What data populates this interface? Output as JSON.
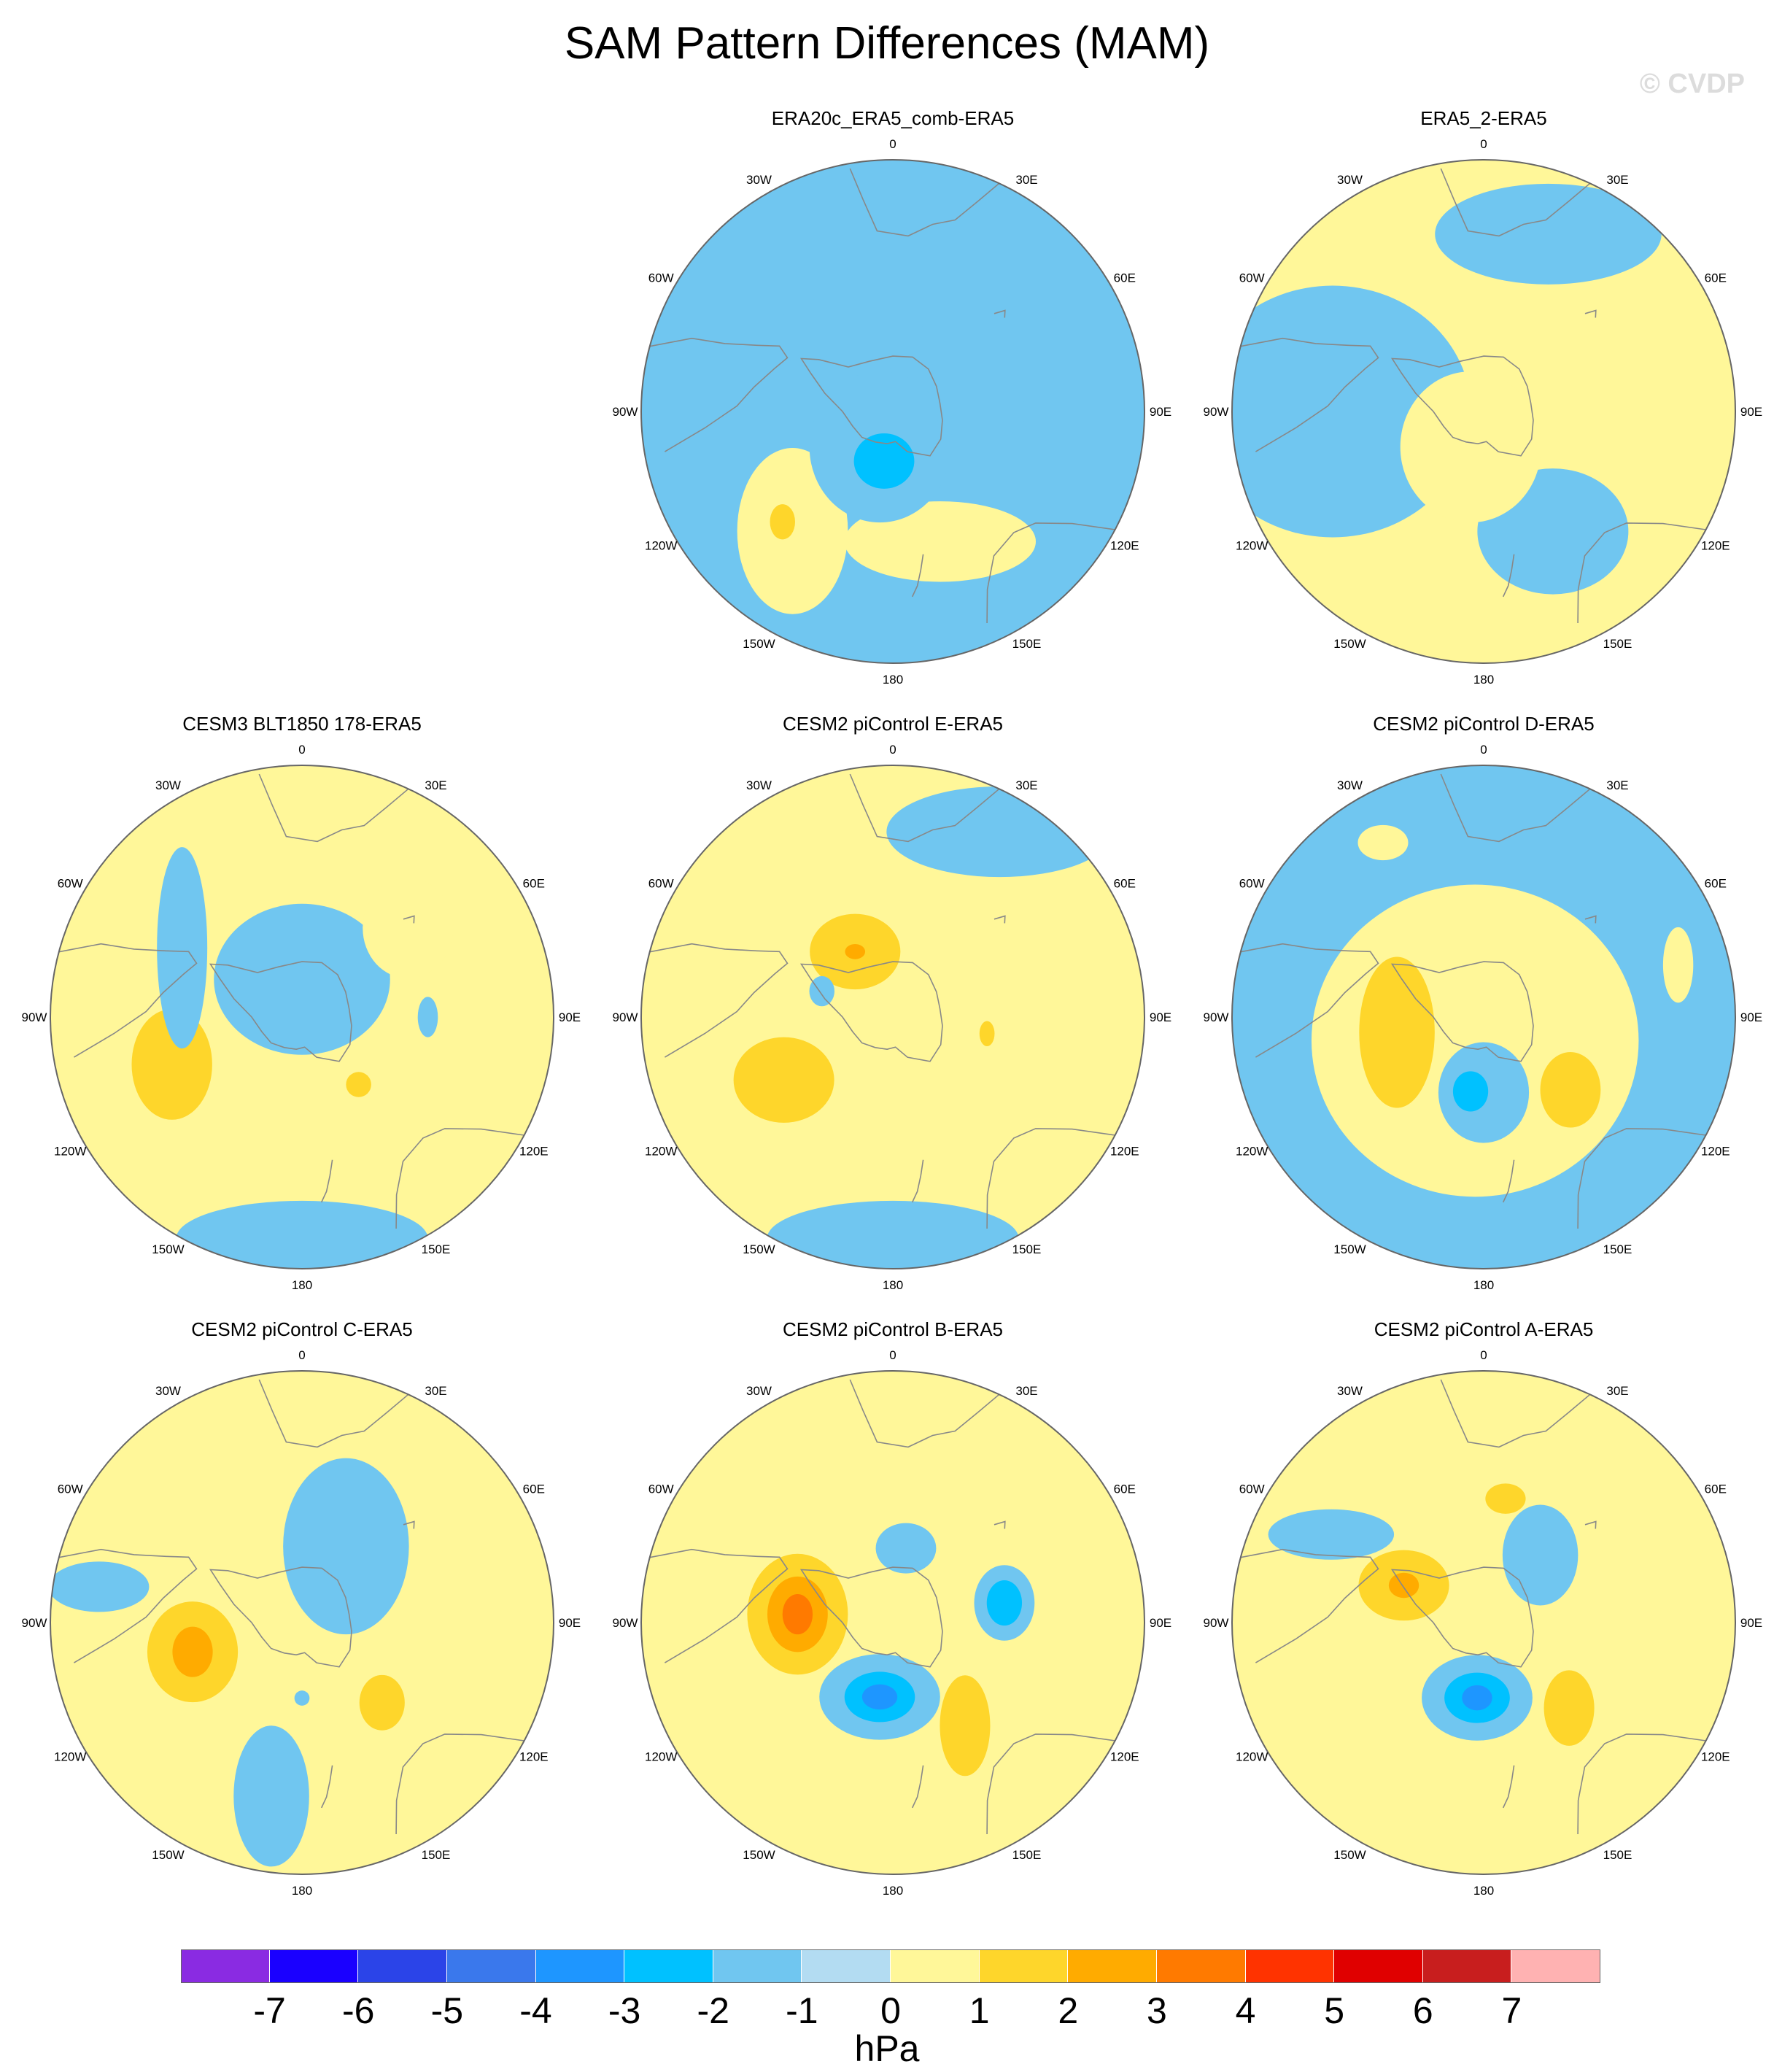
{
  "title": "SAM Pattern Differences (MAM)",
  "watermark": "© CVDP",
  "units": "hPa",
  "colors": {
    "land": "#888888",
    "background_field": "#b3dcf2",
    "frame": "#666666"
  },
  "longitude_labels": [
    "0",
    "30E",
    "60E",
    "90E",
    "120E",
    "150E",
    "180",
    "150W",
    "120W",
    "90W",
    "60W",
    "30W"
  ],
  "colorbar": {
    "colors": [
      "#8a2be2",
      "#1a00ff",
      "#2b44e8",
      "#3a78ec",
      "#1e96ff",
      "#00c1ff",
      "#70c6f0",
      "#b3dcf2",
      "#fff799",
      "#fed62b",
      "#ffab00",
      "#ff7a00",
      "#ff3300",
      "#e00000",
      "#c81e1e",
      "#ffb2b2"
    ],
    "tick_labels": [
      "-7",
      "-6",
      "-5",
      "-4",
      "-3",
      "-2",
      "-1",
      "0",
      "1",
      "2",
      "3",
      "4",
      "5",
      "6",
      "7"
    ]
  },
  "panels": [
    {
      "id": "era20c",
      "title": "ERA20c_ERA5_comb-ERA5",
      "base": "blue",
      "blobs": [
        {
          "lon": 220,
          "r": 0.62,
          "rx": 0.22,
          "ry": 0.33,
          "level": 1
        },
        {
          "lon": 225,
          "r": 0.62,
          "rx": 0.05,
          "ry": 0.07,
          "level": 2
        },
        {
          "lon": 160,
          "r": 0.55,
          "rx": 0.38,
          "ry": 0.16,
          "level": 1
        },
        {
          "lon": 200,
          "r": 0.15,
          "rx": 0.28,
          "ry": 0.3,
          "level": -1
        },
        {
          "lon": 190,
          "r": 0.2,
          "rx": 0.12,
          "ry": 0.11,
          "level": -2
        },
        {
          "lon": 330,
          "r": 0.35,
          "rx": 0.3,
          "ry": 0.16,
          "level": -1
        },
        {
          "lon": 90,
          "r": 0.35,
          "rx": 0.18,
          "ry": 0.12,
          "level": -1
        }
      ]
    },
    {
      "id": "era5_2",
      "title": "ERA5_2-ERA5",
      "base": "yellow",
      "blobs": [
        {
          "lon": 270,
          "r": 0.6,
          "rx": 0.55,
          "ry": 0.5,
          "level": -1
        },
        {
          "lon": 20,
          "r": 0.75,
          "rx": 0.45,
          "ry": 0.2,
          "level": -1
        },
        {
          "lon": 150,
          "r": 0.55,
          "rx": 0.3,
          "ry": 0.25,
          "level": -1
        },
        {
          "lon": 200,
          "r": 0.15,
          "rx": 0.28,
          "ry": 0.3,
          "level": 1
        }
      ]
    },
    {
      "id": "cesm3",
      "title": "CESM3 BLT1850 178-ERA5",
      "base": "yellow",
      "blobs": [
        {
          "lon": 250,
          "r": 0.55,
          "rx": 0.16,
          "ry": 0.22,
          "level": 2
        },
        {
          "lon": 140,
          "r": 0.35,
          "rx": 0.05,
          "ry": 0.05,
          "level": 2
        },
        {
          "lon": 90,
          "r": 0.5,
          "rx": 0.04,
          "ry": 0.08,
          "level": -1
        },
        {
          "lon": 0,
          "r": 0.15,
          "rx": 0.35,
          "ry": 0.3,
          "level": -1
        },
        {
          "lon": 300,
          "r": 0.55,
          "rx": 0.1,
          "ry": 0.4,
          "level": -1
        },
        {
          "lon": 180,
          "r": 0.88,
          "rx": 0.5,
          "ry": 0.15,
          "level": -1
        },
        {
          "lon": 50,
          "r": 0.55,
          "rx": 0.18,
          "ry": 0.2,
          "level": 1
        }
      ]
    },
    {
      "id": "cesm2e",
      "title": "CESM2 piControl E-ERA5",
      "base": "yellow",
      "blobs": [
        {
          "lon": 330,
          "r": 0.3,
          "rx": 0.18,
          "ry": 0.15,
          "level": 2
        },
        {
          "lon": 330,
          "r": 0.3,
          "rx": 0.04,
          "ry": 0.03,
          "level": 3
        },
        {
          "lon": 240,
          "r": 0.5,
          "rx": 0.2,
          "ry": 0.17,
          "level": 2
        },
        {
          "lon": 290,
          "r": 0.3,
          "rx": 0.05,
          "ry": 0.06,
          "level": -1
        },
        {
          "lon": 180,
          "r": 0.88,
          "rx": 0.5,
          "ry": 0.15,
          "level": -1
        },
        {
          "lon": 30,
          "r": 0.85,
          "rx": 0.45,
          "ry": 0.18,
          "level": -1
        },
        {
          "lon": 100,
          "r": 0.38,
          "rx": 0.03,
          "ry": 0.05,
          "level": 2
        }
      ]
    },
    {
      "id": "cesm2d",
      "title": "CESM2 piControl D-ERA5",
      "base": "blue",
      "blobs": [
        {
          "lon": 200,
          "r": 0.1,
          "rx": 0.65,
          "ry": 0.62,
          "level": 1
        },
        {
          "lon": 260,
          "r": 0.35,
          "rx": 0.15,
          "ry": 0.3,
          "level": 2
        },
        {
          "lon": 130,
          "r": 0.45,
          "rx": 0.12,
          "ry": 0.15,
          "level": 2
        },
        {
          "lon": 180,
          "r": 0.3,
          "rx": 0.18,
          "ry": 0.2,
          "level": -1
        },
        {
          "lon": 190,
          "r": 0.3,
          "rx": 0.07,
          "ry": 0.08,
          "level": -2
        },
        {
          "lon": 330,
          "r": 0.8,
          "rx": 0.1,
          "ry": 0.07,
          "level": 1
        },
        {
          "lon": 75,
          "r": 0.8,
          "rx": 0.06,
          "ry": 0.15,
          "level": 1
        }
      ]
    },
    {
      "id": "cesm2c",
      "title": "CESM2 piControl C-ERA5",
      "base": "yellow",
      "blobs": [
        {
          "lon": 255,
          "r": 0.45,
          "rx": 0.18,
          "ry": 0.2,
          "level": 2
        },
        {
          "lon": 255,
          "r": 0.45,
          "rx": 0.08,
          "ry": 0.1,
          "level": 3
        },
        {
          "lon": 135,
          "r": 0.45,
          "rx": 0.09,
          "ry": 0.11,
          "level": 2
        },
        {
          "lon": 180,
          "r": 0.3,
          "rx": 0.03,
          "ry": 0.03,
          "level": -1
        },
        {
          "lon": 30,
          "r": 0.35,
          "rx": 0.25,
          "ry": 0.35,
          "level": -1
        },
        {
          "lon": 190,
          "r": 0.7,
          "rx": 0.15,
          "ry": 0.28,
          "level": -1
        },
        {
          "lon": 280,
          "r": 0.82,
          "rx": 0.2,
          "ry": 0.1,
          "level": -1
        }
      ]
    },
    {
      "id": "cesm2b",
      "title": "CESM2 piControl B-ERA5",
      "base": "yellow",
      "blobs": [
        {
          "lon": 275,
          "r": 0.38,
          "rx": 0.2,
          "ry": 0.24,
          "level": 2
        },
        {
          "lon": 275,
          "r": 0.38,
          "rx": 0.12,
          "ry": 0.15,
          "level": 3
        },
        {
          "lon": 275,
          "r": 0.38,
          "rx": 0.06,
          "ry": 0.08,
          "level": 4
        },
        {
          "lon": 190,
          "r": 0.3,
          "rx": 0.24,
          "ry": 0.17,
          "level": -1
        },
        {
          "lon": 190,
          "r": 0.3,
          "rx": 0.14,
          "ry": 0.1,
          "level": -2
        },
        {
          "lon": 190,
          "r": 0.3,
          "rx": 0.07,
          "ry": 0.05,
          "level": -3
        },
        {
          "lon": 145,
          "r": 0.5,
          "rx": 0.1,
          "ry": 0.2,
          "level": 2
        },
        {
          "lon": 80,
          "r": 0.45,
          "rx": 0.12,
          "ry": 0.15,
          "level": -1
        },
        {
          "lon": 80,
          "r": 0.45,
          "rx": 0.07,
          "ry": 0.09,
          "level": -2
        },
        {
          "lon": 10,
          "r": 0.3,
          "rx": 0.12,
          "ry": 0.1,
          "level": -1
        }
      ]
    },
    {
      "id": "cesm2a",
      "title": "CESM2 piControl A-ERA5",
      "base": "yellow",
      "blobs": [
        {
          "lon": 295,
          "r": 0.35,
          "rx": 0.18,
          "ry": 0.14,
          "level": 2
        },
        {
          "lon": 295,
          "r": 0.35,
          "rx": 0.06,
          "ry": 0.05,
          "level": 3
        },
        {
          "lon": 185,
          "r": 0.3,
          "rx": 0.22,
          "ry": 0.17,
          "level": -1
        },
        {
          "lon": 185,
          "r": 0.3,
          "rx": 0.13,
          "ry": 0.1,
          "level": -2
        },
        {
          "lon": 185,
          "r": 0.3,
          "rx": 0.06,
          "ry": 0.05,
          "level": -3
        },
        {
          "lon": 135,
          "r": 0.48,
          "rx": 0.1,
          "ry": 0.15,
          "level": 2
        },
        {
          "lon": 10,
          "r": 0.5,
          "rx": 0.08,
          "ry": 0.06,
          "level": 2
        },
        {
          "lon": 40,
          "r": 0.35,
          "rx": 0.15,
          "ry": 0.2,
          "level": -1
        },
        {
          "lon": 300,
          "r": 0.7,
          "rx": 0.25,
          "ry": 0.1,
          "level": -1
        }
      ]
    }
  ]
}
